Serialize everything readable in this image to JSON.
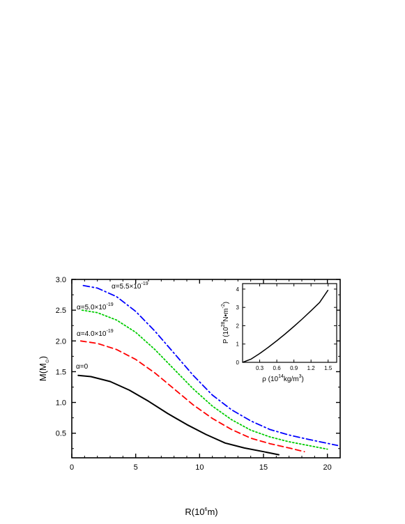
{
  "chart_data": [
    {
      "type": "line",
      "xlabel": {
        "prefix": "R(10",
        "sup": "6",
        "suffix": "m)"
      },
      "ylabel": {
        "prefix": "M(M",
        "sub": "⊙",
        "suffix": ")"
      },
      "xlim": [
        0,
        21
      ],
      "ylim": [
        0.1,
        3.0
      ],
      "xticks": [
        0,
        5,
        10,
        15,
        20
      ],
      "yticks": [
        0.5,
        1.0,
        1.5,
        2.0,
        2.5,
        3.0
      ],
      "series": [
        {
          "label": "α=0",
          "color": "#000000",
          "dash": "solid",
          "x": [
            0.5,
            1.5,
            3,
            4.5,
            6,
            7.5,
            9,
            10.5,
            12,
            13.5,
            15,
            16.2
          ],
          "y": [
            1.44,
            1.42,
            1.34,
            1.2,
            1.02,
            0.82,
            0.64,
            0.48,
            0.34,
            0.26,
            0.2,
            0.15
          ]
        },
        {
          "label": "α=4.0×10⁻¹⁹",
          "color": "#ff0000",
          "dash": "dashed",
          "x": [
            0.7,
            2,
            3.5,
            5,
            6.5,
            8,
            9.5,
            11,
            12.5,
            14,
            15.5,
            17,
            18.2
          ],
          "y": [
            2.0,
            1.96,
            1.86,
            1.7,
            1.48,
            1.22,
            0.96,
            0.74,
            0.56,
            0.42,
            0.33,
            0.26,
            0.2
          ]
        },
        {
          "label": "α=5.0×10⁻¹⁹",
          "color": "#00cc00",
          "dash": "dotted",
          "x": [
            0.8,
            2,
            3.5,
            5,
            6.5,
            8,
            9.5,
            11,
            12.5,
            14,
            15.5,
            17,
            18.5,
            20
          ],
          "y": [
            2.5,
            2.46,
            2.34,
            2.14,
            1.86,
            1.54,
            1.22,
            0.94,
            0.72,
            0.55,
            0.44,
            0.36,
            0.3,
            0.24
          ]
        },
        {
          "label": "α=5.5×10⁻¹⁹",
          "color": "#0000ff",
          "dash": "dashdot",
          "x": [
            0.9,
            2,
            3.5,
            5,
            6.5,
            8,
            9.5,
            11,
            12.5,
            14,
            15.5,
            17,
            18.5,
            20.8
          ],
          "y": [
            2.9,
            2.86,
            2.72,
            2.48,
            2.16,
            1.8,
            1.44,
            1.12,
            0.88,
            0.7,
            0.56,
            0.47,
            0.4,
            0.3
          ]
        }
      ],
      "annotations": [
        {
          "base": "α=5.5×10",
          "exp": "-19"
        },
        {
          "base": "α=5.0×10",
          "exp": "-19"
        },
        {
          "base": "α=4.0×10",
          "exp": "-19"
        },
        {
          "base": "α=0",
          "exp": ""
        }
      ]
    },
    {
      "type": "line",
      "inset": true,
      "xlabel": {
        "prefix": "ρ (10",
        "sup": "14",
        "suffix": "kg/m",
        "sup2": "3",
        "end": ")"
      },
      "ylabel": {
        "prefix": "P (10",
        "sup": "28",
        "suffix": "N•m",
        "sup2": "-2",
        "end": ")"
      },
      "xlim": [
        0,
        1.65
      ],
      "ylim": [
        0,
        4.3
      ],
      "xticks": [
        0.3,
        0.6,
        0.9,
        1.2,
        1.5
      ],
      "yticks": [
        0,
        1,
        2,
        3,
        4
      ],
      "series": [
        {
          "color": "#000000",
          "dash": "solid",
          "x": [
            0.0,
            0.15,
            0.3,
            0.45,
            0.6,
            0.75,
            0.9,
            1.05,
            1.2,
            1.35,
            1.5
          ],
          "y": [
            0.0,
            0.18,
            0.48,
            0.82,
            1.18,
            1.56,
            1.96,
            2.38,
            2.82,
            3.27,
            3.95
          ]
        }
      ]
    }
  ]
}
